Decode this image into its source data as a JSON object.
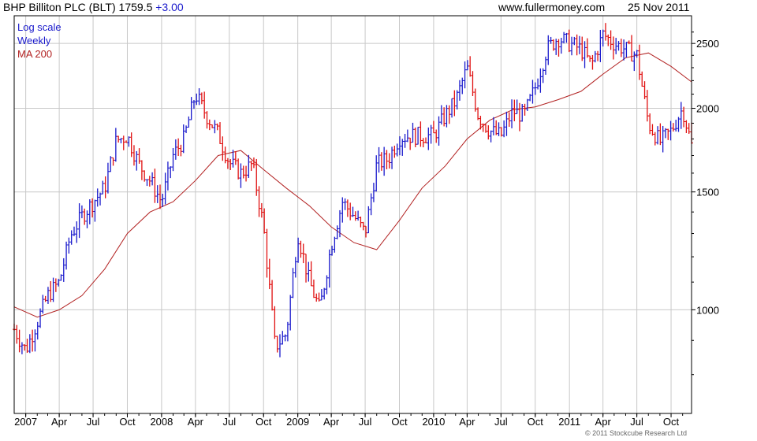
{
  "header": {
    "title": "BHP Billiton PLC (BLT) 1759.5",
    "change": "+3.00",
    "site": "www.fullermoney.com",
    "date": "25 Nov 2011"
  },
  "legend": {
    "log_scale": "Log scale",
    "weekly": "Weekly",
    "ma": "MA 200"
  },
  "copyright": "© 2011 Stockcube Research Ltd",
  "colors": {
    "up": "#1a1acc",
    "down": "#e01010",
    "ma": "#b22222",
    "grid": "#c8c8c8",
    "axis": "#000000"
  },
  "chart_data": {
    "type": "line",
    "title": "BHP Billiton PLC (BLT) 1759.5 +3.00",
    "y_scale": "log",
    "ylim": [
      700,
      2750
    ],
    "y_ticks": [
      1000,
      1500,
      2000,
      2500
    ],
    "x_ticks": [
      "2007",
      "Apr",
      "Jul",
      "Oct",
      "2008",
      "Apr",
      "Jul",
      "Oct",
      "2009",
      "Apr",
      "Jul",
      "Oct",
      "2010",
      "Apr",
      "Jul",
      "Oct",
      "2011",
      "Apr",
      "Jul",
      "Oct"
    ],
    "x_range": [
      "2006-12-01",
      "2011-11-25"
    ],
    "grid": true,
    "series": [
      {
        "name": "Weekly",
        "kind": "price",
        "x": [
          "2006-12-01",
          "2007-01-01",
          "2007-02-01",
          "2007-03-01",
          "2007-04-01",
          "2007-05-01",
          "2007-06-01",
          "2007-07-01",
          "2007-08-01",
          "2007-09-01",
          "2007-10-01",
          "2007-11-01",
          "2007-12-01",
          "2008-01-01",
          "2008-02-01",
          "2008-03-01",
          "2008-04-01",
          "2008-05-01",
          "2008-06-01",
          "2008-07-01",
          "2008-08-01",
          "2008-09-01",
          "2008-10-01",
          "2008-11-01",
          "2008-12-01",
          "2009-01-01",
          "2009-02-01",
          "2009-03-01",
          "2009-04-01",
          "2009-05-01",
          "2009-06-01",
          "2009-07-01",
          "2009-08-01",
          "2009-09-01",
          "2009-10-01",
          "2009-11-01",
          "2009-12-01",
          "2010-01-01",
          "2010-02-01",
          "2010-03-01",
          "2010-04-01",
          "2010-05-01",
          "2010-06-01",
          "2010-07-01",
          "2010-08-01",
          "2010-09-01",
          "2010-10-01",
          "2010-11-01",
          "2010-12-01",
          "2011-01-01",
          "2011-02-01",
          "2011-03-01",
          "2011-04-01",
          "2011-05-01",
          "2011-06-01",
          "2011-07-01",
          "2011-08-01",
          "2011-09-01",
          "2011-10-01",
          "2011-11-01",
          "2011-11-25"
        ],
        "values": [
          935,
          870,
          960,
          1050,
          1100,
          1290,
          1380,
          1450,
          1520,
          1790,
          1820,
          1650,
          1560,
          1450,
          1700,
          1800,
          2100,
          1950,
          1830,
          1660,
          1600,
          1650,
          1330,
          880,
          920,
          1300,
          1100,
          1000,
          1250,
          1450,
          1380,
          1300,
          1650,
          1680,
          1810,
          1820,
          1820,
          1820,
          1950,
          2050,
          2300,
          1950,
          1850,
          1820,
          1980,
          1950,
          2150,
          2450,
          2550,
          2500,
          2450,
          2320,
          2580,
          2500,
          2450,
          2400,
          1900,
          1780,
          1850,
          2000,
          1760
        ]
      },
      {
        "name": "MA 200",
        "kind": "ma",
        "x": [
          "2006-12-01",
          "2007-02-01",
          "2007-04-01",
          "2007-06-01",
          "2007-08-01",
          "2007-10-01",
          "2007-12-01",
          "2008-02-01",
          "2008-04-01",
          "2008-06-01",
          "2008-08-01",
          "2008-10-01",
          "2008-12-01",
          "2009-02-01",
          "2009-04-01",
          "2009-06-01",
          "2009-08-01",
          "2009-10-01",
          "2009-12-01",
          "2010-02-01",
          "2010-04-01",
          "2010-06-01",
          "2010-08-01",
          "2010-10-01",
          "2010-12-01",
          "2011-02-01",
          "2011-04-01",
          "2011-06-01",
          "2011-08-01",
          "2011-10-01",
          "2011-11-25"
        ],
        "values": [
          1010,
          975,
          1000,
          1050,
          1150,
          1300,
          1400,
          1450,
          1560,
          1700,
          1730,
          1620,
          1520,
          1430,
          1330,
          1260,
          1230,
          1360,
          1520,
          1640,
          1800,
          1920,
          1990,
          2010,
          2060,
          2120,
          2250,
          2380,
          2420,
          2310,
          2190
        ]
      }
    ]
  }
}
